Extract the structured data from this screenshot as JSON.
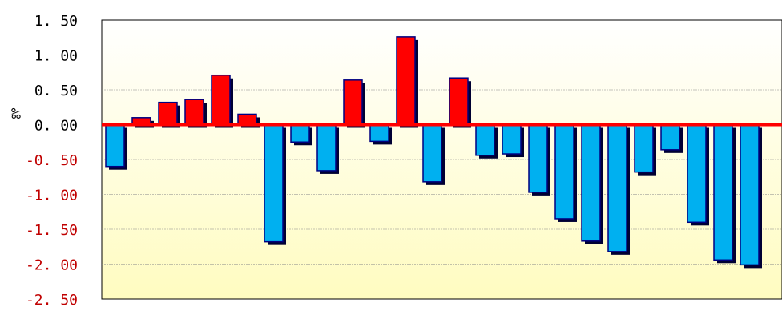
{
  "chart_data": {
    "type": "bar",
    "ylabel": "‰",
    "ylim": [
      -2.5,
      1.5
    ],
    "y_ticks": [
      1.5,
      1.0,
      0.5,
      0.0,
      -0.5,
      -1.0,
      -1.5,
      -2.0,
      -2.5
    ],
    "y_tick_labels": [
      "1. 50",
      "1. 00",
      "0. 50",
      "0. 00",
      "-0. 50",
      "-1. 00",
      "-1. 50",
      "-2. 00",
      "-2. 50"
    ],
    "grid": true,
    "values": [
      -0.6,
      0.1,
      0.32,
      0.36,
      0.71,
      0.15,
      -1.68,
      -0.25,
      -0.66,
      0.64,
      -0.24,
      1.26,
      -0.82,
      0.67,
      -0.44,
      -0.42,
      -0.97,
      -1.35,
      -1.67,
      -1.82,
      -0.68,
      -0.36,
      -1.4,
      -1.94,
      -2.01
    ],
    "colors": {
      "positive": "#ff0000",
      "negative": "#00b0f0",
      "bar_outline": "#000080",
      "bar_shadow": "#000033",
      "zero_line": "#ff0000",
      "plot_bg_top": "#ffffff",
      "plot_bg_bottom": "#fffcc0",
      "grid": "#888888",
      "positive_tick_label": "#000000",
      "negative_tick_label": "#c00000"
    }
  }
}
